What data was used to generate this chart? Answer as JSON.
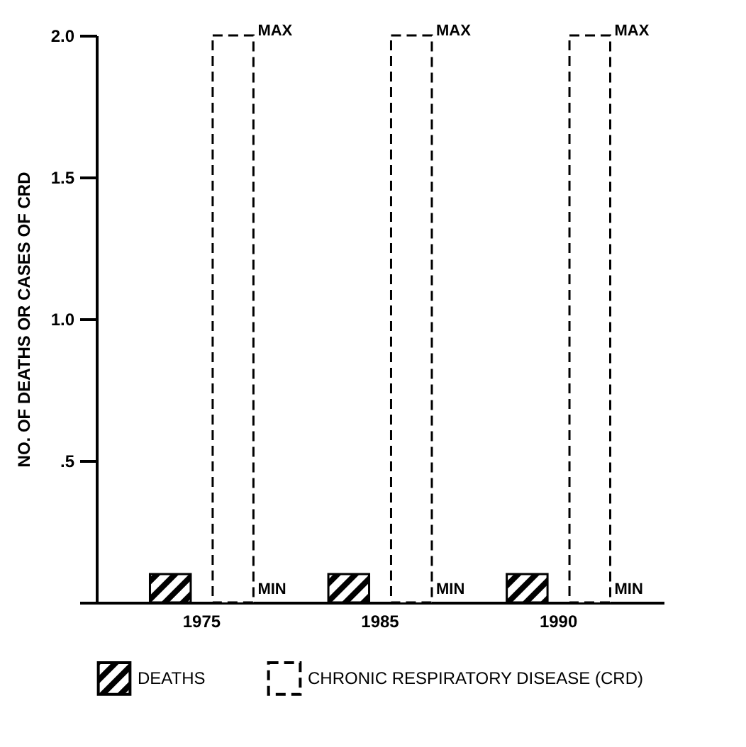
{
  "chart_data": {
    "type": "bar",
    "ylabel": "NO. OF DEATHS OR CASES OF CRD",
    "categories": [
      "1975",
      "1985",
      "1990"
    ],
    "series": [
      {
        "name": "DEATHS",
        "color": "#000000",
        "values": [
          0.1,
          0.1,
          0.1
        ]
      },
      {
        "name": "CHRONIC RESPIRATORY DISEASE (CRD)",
        "color": "#000000",
        "line_style": "dashed",
        "values": [
          2,
          2,
          2
        ]
      }
    ],
    "ylim": [
      0,
      2
    ],
    "yticks": [
      {
        "value": 0,
        "label": null
      },
      {
        "value": 0.5,
        "label": ".5"
      },
      {
        "value": 1,
        "label": "1.0"
      },
      1.5,
      {
        "value": 2,
        "label": "2.0"
      }
    ],
    "annotations": [
      "MAX",
      "MIN",
      "MAX",
      "MIN",
      "MAX",
      "MIN"
    ],
    "grid": false,
    "legend": "bottom"
  }
}
